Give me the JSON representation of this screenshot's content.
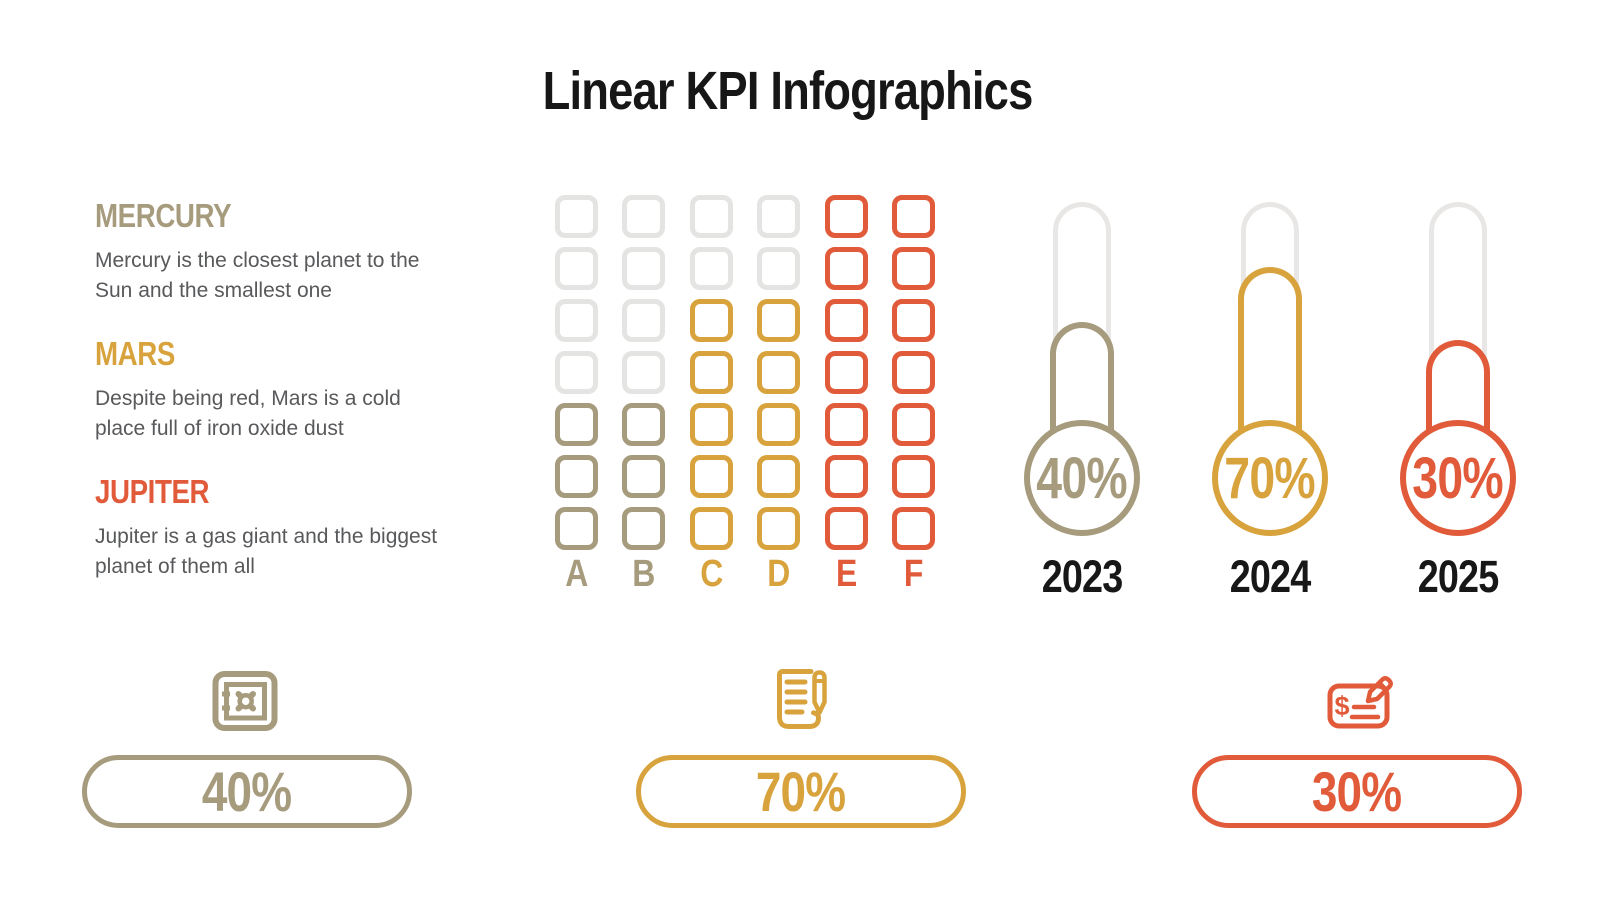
{
  "title": "Linear KPI Infographics",
  "colors": {
    "tan": "#A69B7D",
    "gold": "#D8A33D",
    "red": "#E15B3B",
    "inactive": "#E4E4E3",
    "track": "#E8E7E6",
    "body_text": "#58595B",
    "heading": "#171717"
  },
  "legend": [
    {
      "name": "MERCURY",
      "description": "Mercury is the closest planet to the Sun and the smallest one",
      "color": "tan"
    },
    {
      "name": "MARS",
      "description": "Despite being red, Mars is a cold place full of iron oxide dust",
      "color": "gold"
    },
    {
      "name": "JUPITER",
      "description": "Jupiter is a gas giant and the biggest planet of them all",
      "color": "red"
    }
  ],
  "chart_data": [
    {
      "type": "bar",
      "variant": "waffle-grid",
      "categories": [
        "A",
        "B",
        "C",
        "D",
        "E",
        "F"
      ],
      "values": [
        3,
        3,
        5,
        5,
        7,
        7
      ],
      "max_value": 7,
      "series_colors": [
        "tan",
        "tan",
        "gold",
        "gold",
        "red",
        "red"
      ],
      "grid": "7 rows of outlined rounded squares, filled from bottom"
    },
    {
      "type": "bar",
      "variant": "thermometer-gauge",
      "categories": [
        "2023",
        "2024",
        "2025"
      ],
      "values": [
        40,
        70,
        30
      ],
      "unit": "%",
      "labels": [
        "40%",
        "70%",
        "30%"
      ],
      "series_colors": [
        "tan",
        "gold",
        "red"
      ],
      "value_range": [
        0,
        100
      ]
    },
    {
      "type": "bar",
      "variant": "pill-kpi",
      "values": [
        40,
        70,
        30
      ],
      "labels": [
        "40%",
        "70%",
        "30%"
      ],
      "icons": [
        "safe-icon",
        "document-pencil-icon",
        "cheque-pencil-icon"
      ],
      "series_colors": [
        "tan",
        "gold",
        "red"
      ]
    }
  ]
}
